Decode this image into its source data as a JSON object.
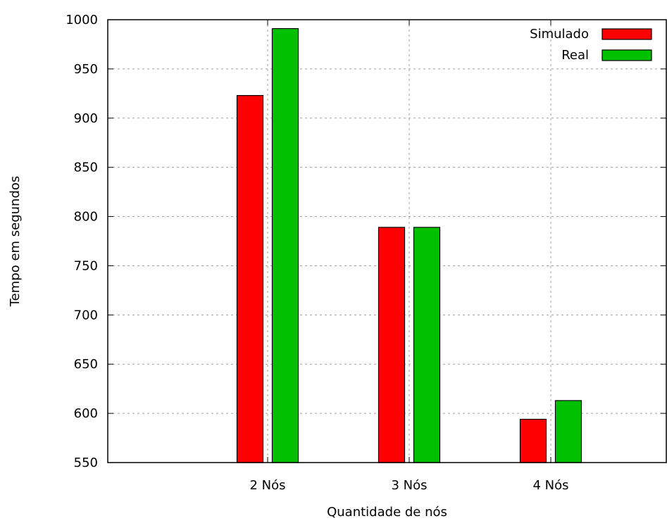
{
  "chart_data": {
    "type": "bar",
    "title": "",
    "xlabel": "Quantidade de nós",
    "ylabel": "Tempo em segundos",
    "categories": [
      "2 Nós",
      "3 Nós",
      "4 Nós"
    ],
    "series": [
      {
        "name": "Simulado",
        "color": "#ff0000",
        "values": [
          923,
          789,
          594
        ]
      },
      {
        "name": "Real",
        "color": "#00c000",
        "values": [
          991,
          789,
          613
        ]
      }
    ],
    "ylim": [
      550,
      1000
    ],
    "yticks": [
      550,
      600,
      650,
      700,
      750,
      800,
      850,
      900,
      950,
      1000
    ],
    "grid": true,
    "legend_position": "top-right"
  }
}
